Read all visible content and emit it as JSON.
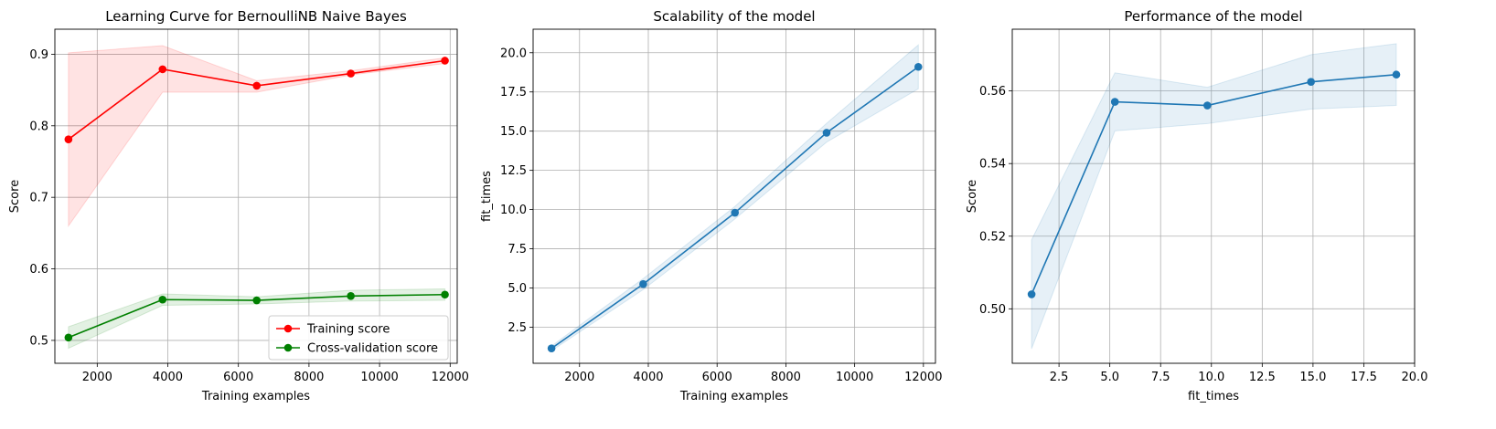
{
  "chart_data": [
    {
      "type": "line",
      "title": "Learning Curve for BernoulliNB Naive Bayes",
      "xlabel": "Training examples",
      "ylabel": "Score",
      "xlim": [
        800,
        12200
      ],
      "ylim": [
        0.468,
        0.935
      ],
      "xticks": [
        2000,
        4000,
        6000,
        8000,
        10000,
        12000
      ],
      "yticks": [
        0.5,
        0.6,
        0.7,
        0.8,
        0.9
      ],
      "grid": true,
      "legend_position": "lower-right",
      "series": [
        {
          "name": "Training score",
          "color": "#ff0000",
          "band_color": "#ff0000",
          "x": [
            1185,
            3852,
            6519,
            9185,
            11852
          ],
          "y": [
            0.781,
            0.879,
            0.856,
            0.873,
            0.891
          ],
          "band_lower": [
            0.66,
            0.847,
            0.847,
            0.871,
            0.887
          ],
          "band_upper": [
            0.902,
            0.912,
            0.863,
            0.877,
            0.895
          ]
        },
        {
          "name": "Cross-validation score",
          "color": "#008000",
          "band_color": "#008000",
          "x": [
            1185,
            3852,
            6519,
            9185,
            11852
          ],
          "y": [
            0.504,
            0.557,
            0.556,
            0.562,
            0.564
          ],
          "band_lower": [
            0.489,
            0.549,
            0.551,
            0.555,
            0.556
          ],
          "band_upper": [
            0.519,
            0.565,
            0.561,
            0.57,
            0.572
          ]
        }
      ]
    },
    {
      "type": "line",
      "title": "Scalability of the model",
      "xlabel": "Training examples",
      "ylabel": "fit_times",
      "xlim": [
        650,
        12350
      ],
      "ylim": [
        0.2,
        21.5
      ],
      "xticks": [
        2000,
        4000,
        6000,
        8000,
        10000,
        12000
      ],
      "yticks": [
        2.5,
        5.0,
        7.5,
        10.0,
        12.5,
        15.0,
        17.5,
        20.0
      ],
      "ytick_labels": [
        "2.5",
        "5.0",
        "7.5",
        "10.0",
        "12.5",
        "15.0",
        "17.5",
        "20.0"
      ],
      "grid": true,
      "series": [
        {
          "color": "#1f77b4",
          "band_color": "#1f77b4",
          "x": [
            1185,
            3852,
            6519,
            9185,
            11852
          ],
          "y": [
            1.15,
            5.25,
            9.8,
            14.9,
            19.1
          ],
          "band_lower": [
            1.0,
            4.9,
            9.4,
            14.3,
            17.7
          ],
          "band_upper": [
            1.3,
            5.6,
            10.2,
            15.5,
            20.5
          ]
        }
      ]
    },
    {
      "type": "line",
      "title": "Performance of the model",
      "xlabel": "fit_times",
      "ylabel": "Score",
      "xlim": [
        0.2,
        20.0
      ],
      "ylim": [
        0.485,
        0.577
      ],
      "xticks": [
        2.5,
        5.0,
        7.5,
        10.0,
        12.5,
        15.0,
        17.5,
        20.0
      ],
      "xtick_labels": [
        "2.5",
        "5.0",
        "7.5",
        "10.0",
        "12.5",
        "15.0",
        "17.5",
        "20.0"
      ],
      "yticks": [
        0.5,
        0.52,
        0.54,
        0.56
      ],
      "ytick_labels": [
        "0.50",
        "0.52",
        "0.54",
        "0.56"
      ],
      "grid": true,
      "series": [
        {
          "color": "#1f77b4",
          "band_color": "#1f77b4",
          "x": [
            1.15,
            5.25,
            9.8,
            14.9,
            19.1
          ],
          "y": [
            0.504,
            0.557,
            0.556,
            0.5625,
            0.5645
          ],
          "band_lower": [
            0.489,
            0.549,
            0.551,
            0.555,
            0.556
          ],
          "band_upper": [
            0.519,
            0.565,
            0.561,
            0.57,
            0.573
          ]
        }
      ]
    }
  ]
}
